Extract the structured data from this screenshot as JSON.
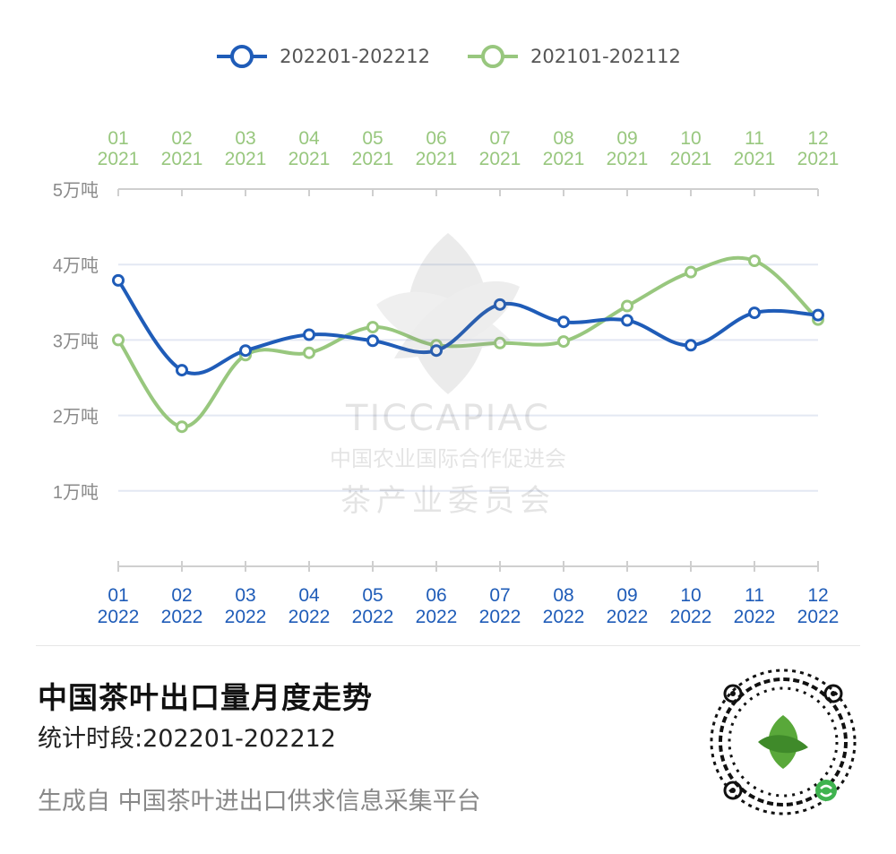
{
  "legend": [
    {
      "label": "202201-202212",
      "color": "#1f5cb8"
    },
    {
      "label": "202101-202112",
      "color": "#98c77e"
    }
  ],
  "chart_data": {
    "type": "line",
    "y_ticks": [
      "5万吨",
      "4万吨",
      "3万吨",
      "2万吨",
      "1万吨"
    ],
    "y_tick_values": [
      5,
      4,
      3,
      2,
      1
    ],
    "ylim": [
      0,
      5
    ],
    "y_unit": "万吨",
    "grid": true,
    "legend_position": "top-center",
    "x_bottom": {
      "months": [
        "01",
        "02",
        "03",
        "04",
        "05",
        "06",
        "07",
        "08",
        "09",
        "10",
        "11",
        "12"
      ],
      "year": "2022",
      "color": "#1f5cb8"
    },
    "x_top": {
      "months": [
        "01",
        "02",
        "03",
        "04",
        "05",
        "06",
        "07",
        "08",
        "09",
        "10",
        "11",
        "12"
      ],
      "year": "2021",
      "color": "#98c77e"
    },
    "series": [
      {
        "name": "202201-202212",
        "color": "#1f5cb8",
        "values": [
          3.79,
          2.6,
          2.86,
          3.07,
          2.99,
          2.86,
          3.47,
          3.24,
          3.26,
          2.93,
          3.36,
          3.33
        ]
      },
      {
        "name": "202101-202112",
        "color": "#98c77e",
        "values": [
          3.0,
          1.85,
          2.8,
          2.83,
          3.17,
          2.93,
          2.96,
          2.98,
          3.45,
          3.9,
          4.05,
          3.27
        ]
      }
    ]
  },
  "watermark": {
    "brand": "TICCAPIAC",
    "org_line1": "中国农业国际合作促进会",
    "org_line2": "茶产业委员会"
  },
  "title": "中国茶叶出口量月度走势",
  "period": "统计时段:202201-202212",
  "footer": "生成自 中国茶叶进出口供求信息采集平台",
  "qr": {
    "icon": "qr-code-icon"
  }
}
